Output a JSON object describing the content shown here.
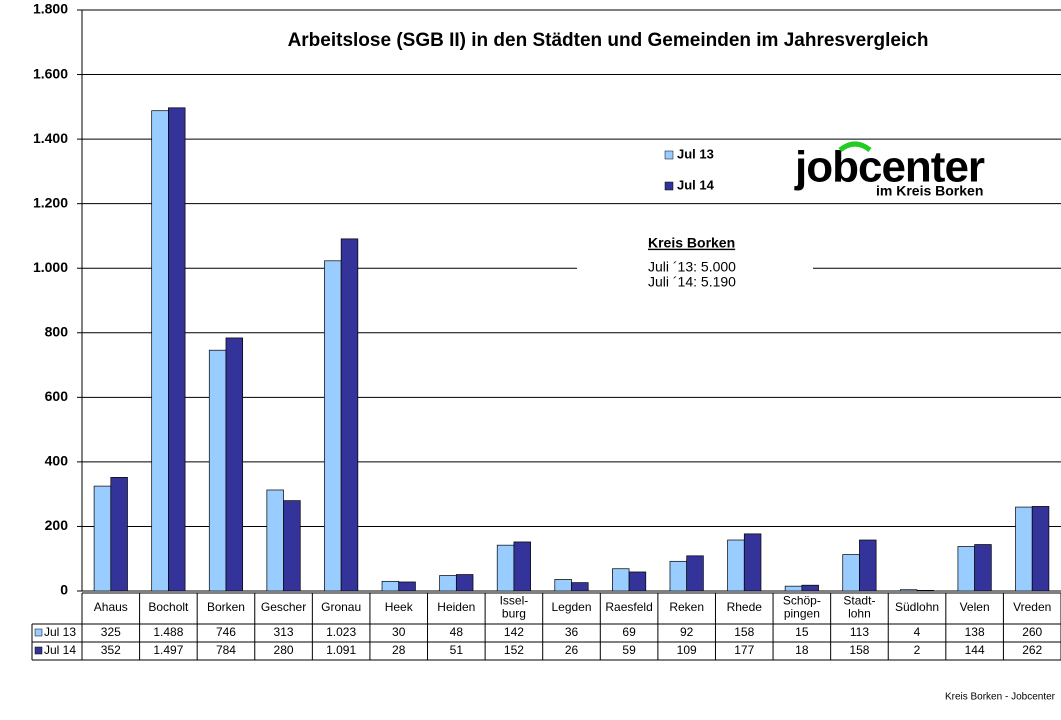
{
  "chart_data": {
    "type": "bar",
    "title": "Arbeitslose (SGB II) in den Städten und Gemeinden im Jahresvergleich",
    "categories": [
      "Ahaus",
      "Bocholt",
      "Borken",
      "Gescher",
      "Gronau",
      "Heek",
      "Heiden",
      "Issel-\nburg",
      "Legden",
      "Raesfeld",
      "Reken",
      "Rhede",
      "Schöp-\npingen",
      "Stadt-\nlohn",
      "Südlohn",
      "Velen",
      "Vreden"
    ],
    "series": [
      {
        "name": "Jul 13",
        "color": "#99ccff",
        "values": [
          325,
          1488,
          746,
          313,
          1023,
          30,
          48,
          142,
          36,
          69,
          92,
          158,
          15,
          113,
          4,
          138,
          260
        ],
        "value_labels": [
          "325",
          "1.488",
          "746",
          "313",
          "1.023",
          "30",
          "48",
          "142",
          "36",
          "69",
          "92",
          "158",
          "15",
          "113",
          "4",
          "138",
          "260"
        ]
      },
      {
        "name": "Jul 14",
        "color": "#333399",
        "values": [
          352,
          1497,
          784,
          280,
          1091,
          28,
          51,
          152,
          26,
          59,
          109,
          177,
          18,
          158,
          2,
          144,
          262
        ],
        "value_labels": [
          "352",
          "1.497",
          "784",
          "280",
          "1.091",
          "28",
          "51",
          "152",
          "26",
          "59",
          "109",
          "177",
          "18",
          "158",
          "2",
          "144",
          "262"
        ]
      }
    ],
    "ylim": [
      0,
      1800
    ],
    "yticks": [
      0,
      200,
      400,
      600,
      800,
      {
        "value": 1000,
        "label": "1.000"
      },
      {
        "value": 1200,
        "label": "1.200"
      },
      {
        "value": 1400,
        "label": "1.400"
      },
      {
        "value": 1600,
        "label": "1.600"
      },
      {
        "value": 1800,
        "label": "1.800"
      }
    ],
    "grid": true,
    "annotation": {
      "title": "Kreis Borken",
      "lines": [
        "Juli ´13: 5.000",
        "Juli ´14: 5.190"
      ]
    },
    "logo": {
      "name": "jobcenter",
      "subtitle": "im Kreis Borken"
    },
    "footer": "Kreis Borken - Jobcenter"
  }
}
